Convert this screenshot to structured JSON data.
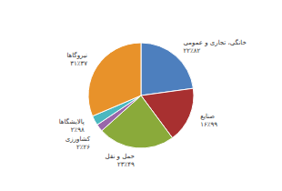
{
  "chart_data": {
    "type": "pie",
    "categories": [
      "خانگی، تجاری و عمومی",
      "صنایع",
      "حمل و نقل",
      "کشاورزی",
      "پالایشگاها",
      "نیروگاها"
    ],
    "values": [
      22.82,
      16.99,
      23.49,
      2.26,
      2.98,
      31.37
    ],
    "value_labels": [
      "۲۲٪۸۲",
      "۱۶٪۹۹",
      "۲۳٪۴۹",
      "۲٪۲۶",
      "۲٪۹۸",
      "۳۱٪۳۷"
    ],
    "colors": [
      "#4d7fbe",
      "#a83030",
      "#8aaa3a",
      "#9966aa",
      "#4ab8c0",
      "#e8922a"
    ],
    "data_labels": true
  }
}
